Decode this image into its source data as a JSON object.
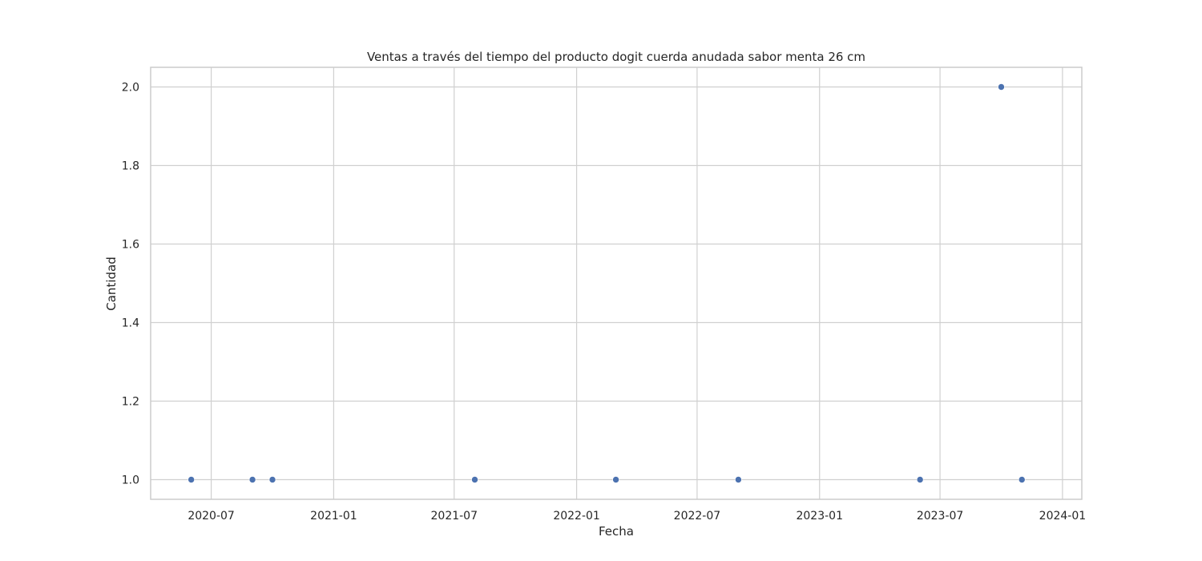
{
  "chart_data": {
    "type": "scatter",
    "title": "Ventas a través del tiempo del producto dogit cuerda anudada sabor menta 26 cm",
    "xlabel": "Fecha",
    "ylabel": "Cantidad",
    "x_type": "date",
    "xlim": [
      "2020-04-01",
      "2024-01-30"
    ],
    "ylim": [
      0.95,
      2.05
    ],
    "x_ticks": [
      "2020-07",
      "2021-01",
      "2021-07",
      "2022-01",
      "2022-07",
      "2023-01",
      "2023-07",
      "2024-01"
    ],
    "x_tick_dates": [
      "2020-07-01",
      "2021-01-01",
      "2021-07-01",
      "2022-01-01",
      "2022-07-01",
      "2023-01-01",
      "2023-07-01",
      "2024-01-01"
    ],
    "y_ticks": [
      1.0,
      1.2,
      1.4,
      1.6,
      1.8,
      2.0
    ],
    "y_tick_labels": [
      "1.0",
      "1.2",
      "1.4",
      "1.6",
      "1.8",
      "2.0"
    ],
    "grid": true,
    "marker_color": "#4c72b0",
    "points": [
      {
        "x": "2020-06-01",
        "y": 1
      },
      {
        "x": "2020-09-01",
        "y": 1
      },
      {
        "x": "2020-10-01",
        "y": 1
      },
      {
        "x": "2021-08-01",
        "y": 1
      },
      {
        "x": "2022-03-01",
        "y": 1
      },
      {
        "x": "2022-09-01",
        "y": 1
      },
      {
        "x": "2023-06-01",
        "y": 1
      },
      {
        "x": "2023-10-01",
        "y": 2
      },
      {
        "x": "2023-11-01",
        "y": 1
      }
    ]
  }
}
